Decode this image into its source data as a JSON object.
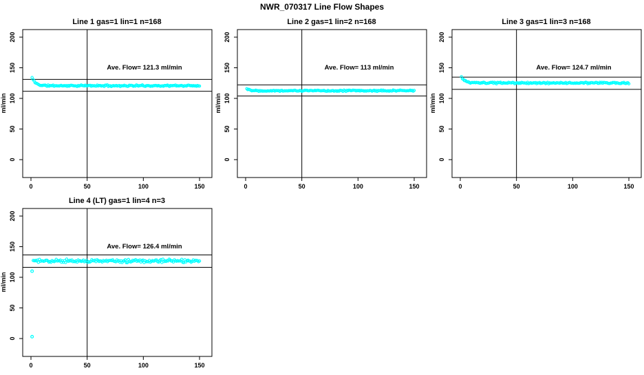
{
  "figure": {
    "title": "NWR_070317  Line Flow Shapes"
  },
  "colors": {
    "points": "#00ffff",
    "axis": "#000000",
    "background": "#ffffff"
  },
  "chart_data": [
    {
      "type": "scatter",
      "title": "Line 1 gas=1 lin=1 n=168",
      "annotation": "Ave. Flow=  121.3  ml/min",
      "ave_flow_ml_min": 121.3,
      "n": 168,
      "xlabel": "",
      "ylabel": "ml/min",
      "xlim": [
        0,
        150
      ],
      "ylim": [
        0,
        200
      ],
      "xticks": [
        "0",
        "50",
        "100",
        "150"
      ],
      "yticks": [
        "0",
        "50",
        "100",
        "150",
        "200"
      ],
      "vline_x": 50,
      "hlines": [
        131.0,
        111.6
      ],
      "band": {
        "x_start": 1,
        "x_end": 150,
        "count": 168,
        "start_value": 134,
        "settle_value": 120.7,
        "decay_tau": 3,
        "noise": 1.0,
        "seed": 11
      },
      "outliers": []
    },
    {
      "type": "scatter",
      "title": "Line 2 gas=1 lin=2 n=168",
      "annotation": "Ave. Flow=  113  ml/min",
      "ave_flow_ml_min": 113,
      "n": 168,
      "xlabel": "",
      "ylabel": "ml/min",
      "xlim": [
        0,
        150
      ],
      "ylim": [
        0,
        200
      ],
      "xticks": [
        "0",
        "50",
        "100",
        "150"
      ],
      "yticks": [
        "0",
        "50",
        "100",
        "150",
        "200"
      ],
      "vline_x": 50,
      "hlines": [
        122.0,
        104.0
      ],
      "band": {
        "x_start": 1,
        "x_end": 150,
        "count": 168,
        "start_value": 116,
        "settle_value": 112.6,
        "decay_tau": 3,
        "noise": 0.9,
        "seed": 22
      },
      "outliers": []
    },
    {
      "type": "scatter",
      "title": "Line 3 gas=1 lin=3 n=168",
      "annotation": "Ave. Flow=  124.7  ml/min",
      "ave_flow_ml_min": 124.7,
      "n": 168,
      "xlabel": "",
      "ylabel": "ml/min",
      "xlim": [
        0,
        150
      ],
      "ylim": [
        0,
        200
      ],
      "xticks": [
        "0",
        "50",
        "100",
        "150"
      ],
      "yticks": [
        "0",
        "50",
        "100",
        "150",
        "200"
      ],
      "vline_x": 50,
      "hlines": [
        134.7,
        114.7
      ],
      "band": {
        "x_start": 1,
        "x_end": 150,
        "count": 168,
        "start_value": 135,
        "settle_value": 125.2,
        "decay_tau": 3,
        "noise": 1.0,
        "seed": 33
      },
      "outliers": []
    },
    {
      "type": "scatter",
      "title": "Line 4 (LT) gas=1 lin=4 n=3",
      "annotation": "Ave. Flow=  126.4  ml/min",
      "ave_flow_ml_min": 126.4,
      "n": 3,
      "xlabel": "",
      "ylabel": "ml/min",
      "xlim": [
        0,
        150
      ],
      "ylim": [
        0,
        200
      ],
      "xticks": [
        "0",
        "50",
        "100",
        "150"
      ],
      "yticks": [
        "0",
        "50",
        "100",
        "150",
        "200"
      ],
      "vline_x": 50,
      "hlines": [
        136.5,
        116.3
      ],
      "band": {
        "x_start": 2,
        "x_end": 150,
        "count": 160,
        "start_value": 127.5,
        "settle_value": 126.6,
        "decay_tau": 3,
        "noise": 2.2,
        "seed": 44
      },
      "outliers": [
        [
          1,
          110
        ],
        [
          1,
          3
        ]
      ]
    }
  ]
}
